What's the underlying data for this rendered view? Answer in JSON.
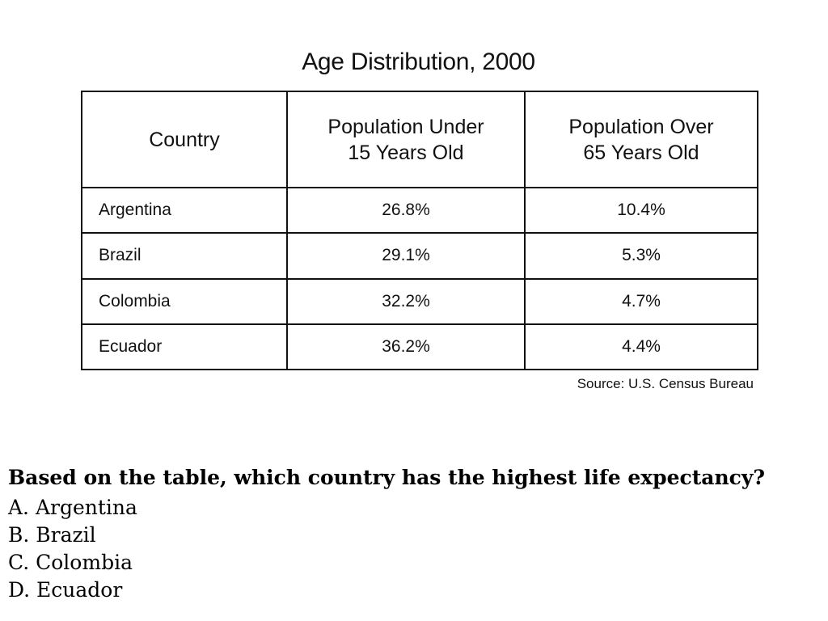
{
  "chart_data": {
    "type": "table",
    "title": "Age Distribution, 2000",
    "columns": [
      "Country",
      "Population Under\n15 Years Old",
      "Population Over\n65 Years Old"
    ],
    "rows": [
      {
        "country": "Argentina",
        "under_15": "26.8%",
        "over_65": "10.4%"
      },
      {
        "country": "Brazil",
        "under_15": "29.1%",
        "over_65": "5.3%"
      },
      {
        "country": "Colombia",
        "under_15": "32.2%",
        "over_65": "4.7%"
      },
      {
        "country": "Ecuador",
        "under_15": "36.2%",
        "over_65": "4.4%"
      }
    ],
    "source": "Source: U.S. Census Bureau"
  },
  "question": {
    "prompt": "Based on the table, which country has the highest life expectancy?",
    "choices": [
      "A. Argentina",
      "B. Brazil",
      "C. Colombia",
      "D. Ecuador"
    ]
  }
}
